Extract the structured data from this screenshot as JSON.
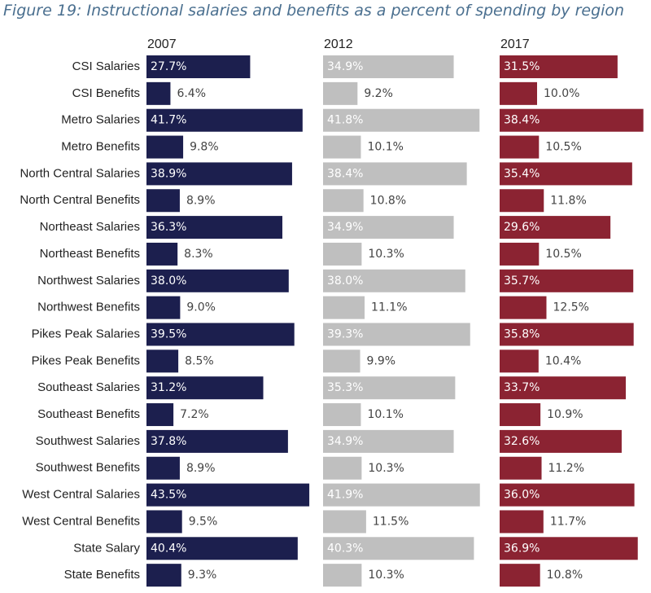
{
  "title": "Figure 19: Instructional salaries and benefits as a percent of spending by region",
  "chart_data": {
    "type": "bar",
    "orientation": "horizontal",
    "layout": "small-multiples",
    "title": "Figure 19: Instructional salaries and benefits as a percent of spending by region",
    "value_format": "percent",
    "categories": [
      "CSI Salaries",
      "CSI Benefits",
      "Metro Salaries",
      "Metro Benefits",
      "North Central Salaries",
      "North Central Benefits",
      "Northeast Salaries",
      "Northeast Benefits",
      "Northwest Salaries",
      "Northwest Benefits",
      "Pikes Peak Salaries",
      "Pikes Peak Benefits",
      "Southeast Salaries",
      "Southeast Benefits",
      "Southwest Salaries",
      "Southwest Benefits",
      "West Central Salaries",
      "West Central Benefits",
      "State Salary",
      "State Benefits"
    ],
    "series": [
      {
        "name": "2007",
        "color": "#1c1f4e",
        "values": [
          27.7,
          6.4,
          41.7,
          9.8,
          38.9,
          8.9,
          36.3,
          8.3,
          38.0,
          9.0,
          39.5,
          8.5,
          31.2,
          7.2,
          37.8,
          8.9,
          43.5,
          9.5,
          40.4,
          9.3
        ]
      },
      {
        "name": "2012",
        "color": "#bfbfbf",
        "values": [
          34.9,
          9.2,
          41.8,
          10.1,
          38.4,
          10.8,
          34.9,
          10.3,
          38.0,
          11.1,
          39.3,
          9.9,
          35.3,
          10.1,
          34.9,
          10.3,
          41.9,
          11.5,
          40.3,
          10.3
        ]
      },
      {
        "name": "2017",
        "color": "#8b2332",
        "values": [
          31.5,
          10.0,
          38.4,
          10.5,
          35.4,
          11.8,
          29.6,
          10.5,
          35.7,
          12.5,
          35.8,
          10.4,
          33.7,
          10.9,
          32.6,
          11.2,
          36.0,
          11.7,
          36.9,
          10.8
        ]
      }
    ],
    "label_colors": {
      "inside": "#ffffff",
      "outside": "#444444"
    },
    "grid": false,
    "legend": "none"
  }
}
